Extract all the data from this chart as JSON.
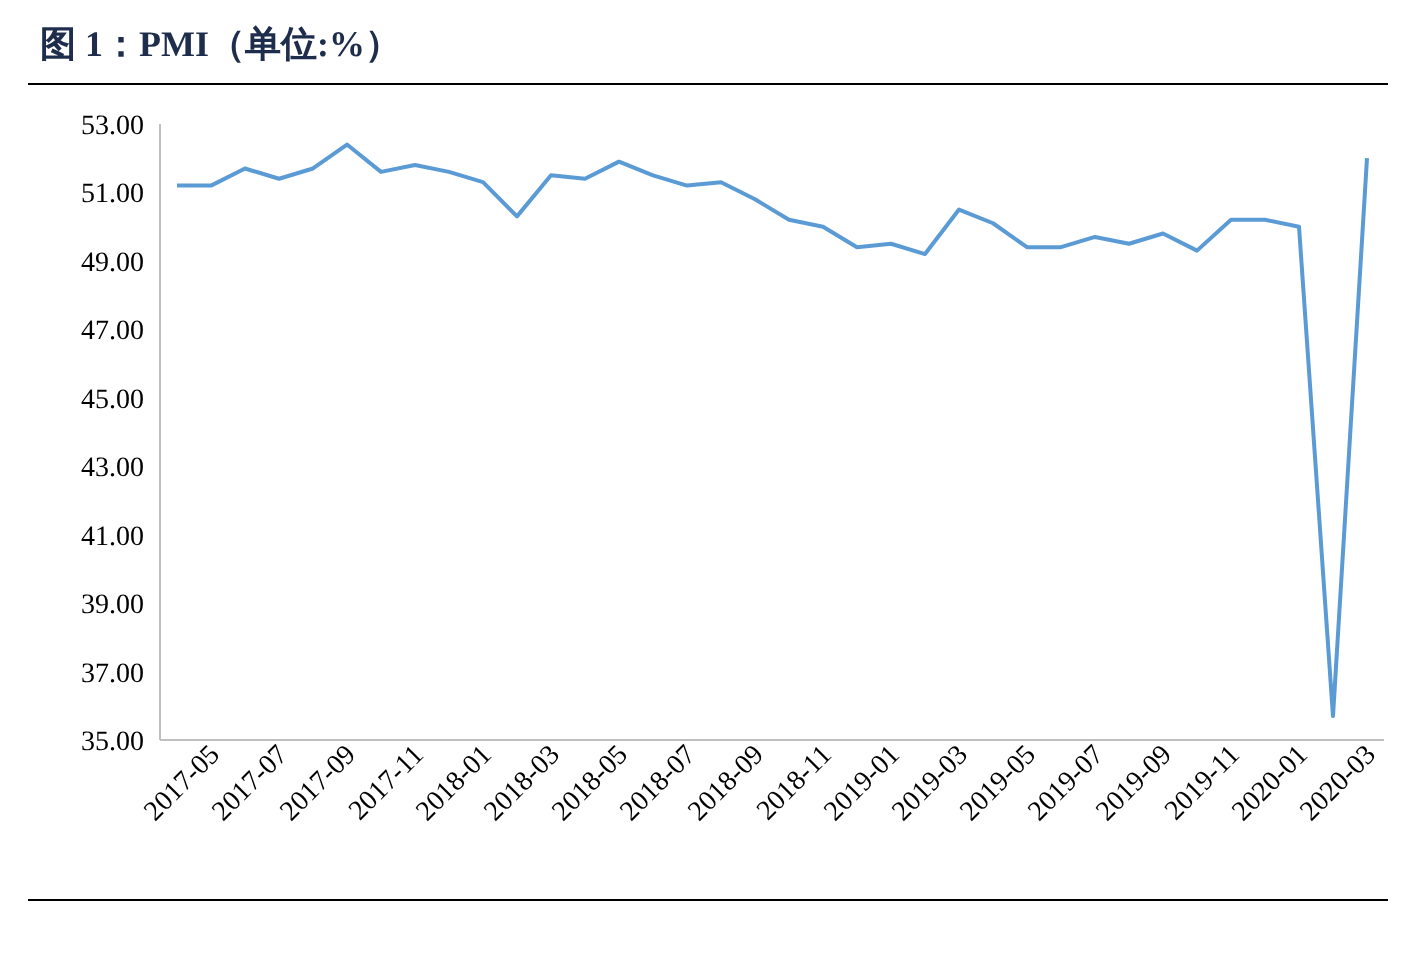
{
  "chart_data": {
    "type": "line",
    "title": "图 1：PMI（单位:%）",
    "categories": [
      null,
      "2017-05",
      null,
      "2017-07",
      null,
      "2017-09",
      null,
      "2017-11",
      null,
      "2018-01",
      null,
      "2018-03",
      null,
      "2018-05",
      null,
      "2018-07",
      null,
      "2018-09",
      null,
      "2018-11",
      null,
      "2019-01",
      null,
      "2019-03",
      null,
      "2019-05",
      null,
      "2019-07",
      null,
      "2019-09",
      null,
      "2019-11",
      null,
      "2020-01",
      null,
      "2020-03"
    ],
    "series": [
      {
        "color": "#5b9bd5",
        "values": [
          51.2,
          51.2,
          51.7,
          51.4,
          51.7,
          52.4,
          51.6,
          51.8,
          51.6,
          51.3,
          50.3,
          51.5,
          51.4,
          51.9,
          51.5,
          51.2,
          51.3,
          50.8,
          50.2,
          50.0,
          49.4,
          49.5,
          49.2,
          50.5,
          50.1,
          49.4,
          49.4,
          49.7,
          49.5,
          49.8,
          49.3,
          50.2,
          50.2,
          50.0,
          35.7,
          52.0
        ]
      }
    ],
    "ylim": [
      35,
      53
    ],
    "yticks": [
      {
        "value": 35,
        "label": "35.00"
      },
      {
        "value": 37,
        "label": "37.00"
      },
      {
        "value": 39,
        "label": "39.00"
      },
      {
        "value": 41,
        "label": "41.00"
      },
      {
        "value": 43,
        "label": "43.00"
      },
      {
        "value": 45,
        "label": "45.00"
      },
      {
        "value": 47,
        "label": "47.00"
      },
      {
        "value": 49,
        "label": "49.00"
      },
      {
        "value": 51,
        "label": "51.00"
      },
      {
        "value": 53,
        "label": "53.00"
      }
    ],
    "marker": "none",
    "line_style": "solid"
  }
}
